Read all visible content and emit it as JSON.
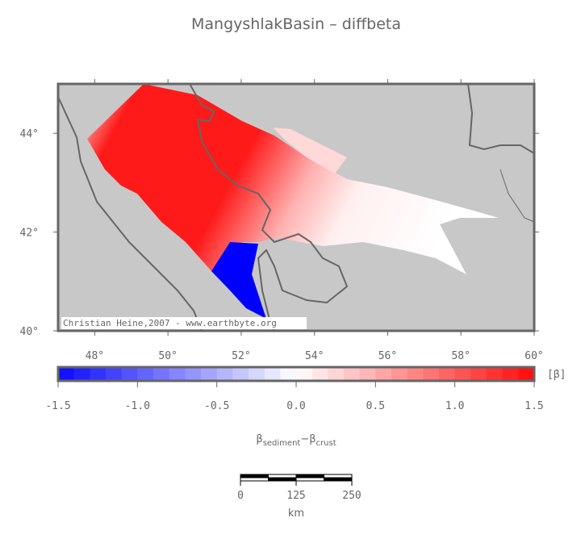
{
  "title": "MangyshlakBasin – diffbeta",
  "map": {
    "xlim": [
      47,
      60
    ],
    "ylim": [
      40,
      45
    ],
    "xticks": [
      {
        "value": 48,
        "label": "48°"
      },
      {
        "value": 50,
        "label": "50°"
      },
      {
        "value": 52,
        "label": "52°"
      },
      {
        "value": 54,
        "label": "54°"
      },
      {
        "value": 56,
        "label": "56°"
      },
      {
        "value": 58,
        "label": "58°"
      },
      {
        "value": 60,
        "label": "60°"
      }
    ],
    "yticks": [
      {
        "value": 40,
        "label": "40°"
      },
      {
        "value": 42,
        "label": "42°"
      },
      {
        "value": 44,
        "label": "44°"
      }
    ],
    "credit": "Christian Heine,2007 - www.earthbyte.org"
  },
  "colorbar": {
    "range": [
      -1.5,
      1.5
    ],
    "unit": "[β]",
    "ticks": [
      {
        "value": -1.5,
        "label": "-1.5"
      },
      {
        "value": -1.0,
        "label": "-1.0"
      },
      {
        "value": -0.5,
        "label": "-0.5"
      },
      {
        "value": 0,
        "label": "0.0"
      },
      {
        "value": 0.5,
        "label": "0.5"
      },
      {
        "value": 1.0,
        "label": "1.0"
      },
      {
        "value": 1.5,
        "label": "1.5"
      }
    ],
    "label": {
      "symbol1": "β",
      "sub1": "sediment",
      "operator": "−",
      "symbol2": "β",
      "sub2": "crust"
    }
  },
  "scalebar": {
    "range": [
      0,
      250
    ],
    "ticks": [
      0,
      125,
      250
    ],
    "unit": "km"
  }
}
